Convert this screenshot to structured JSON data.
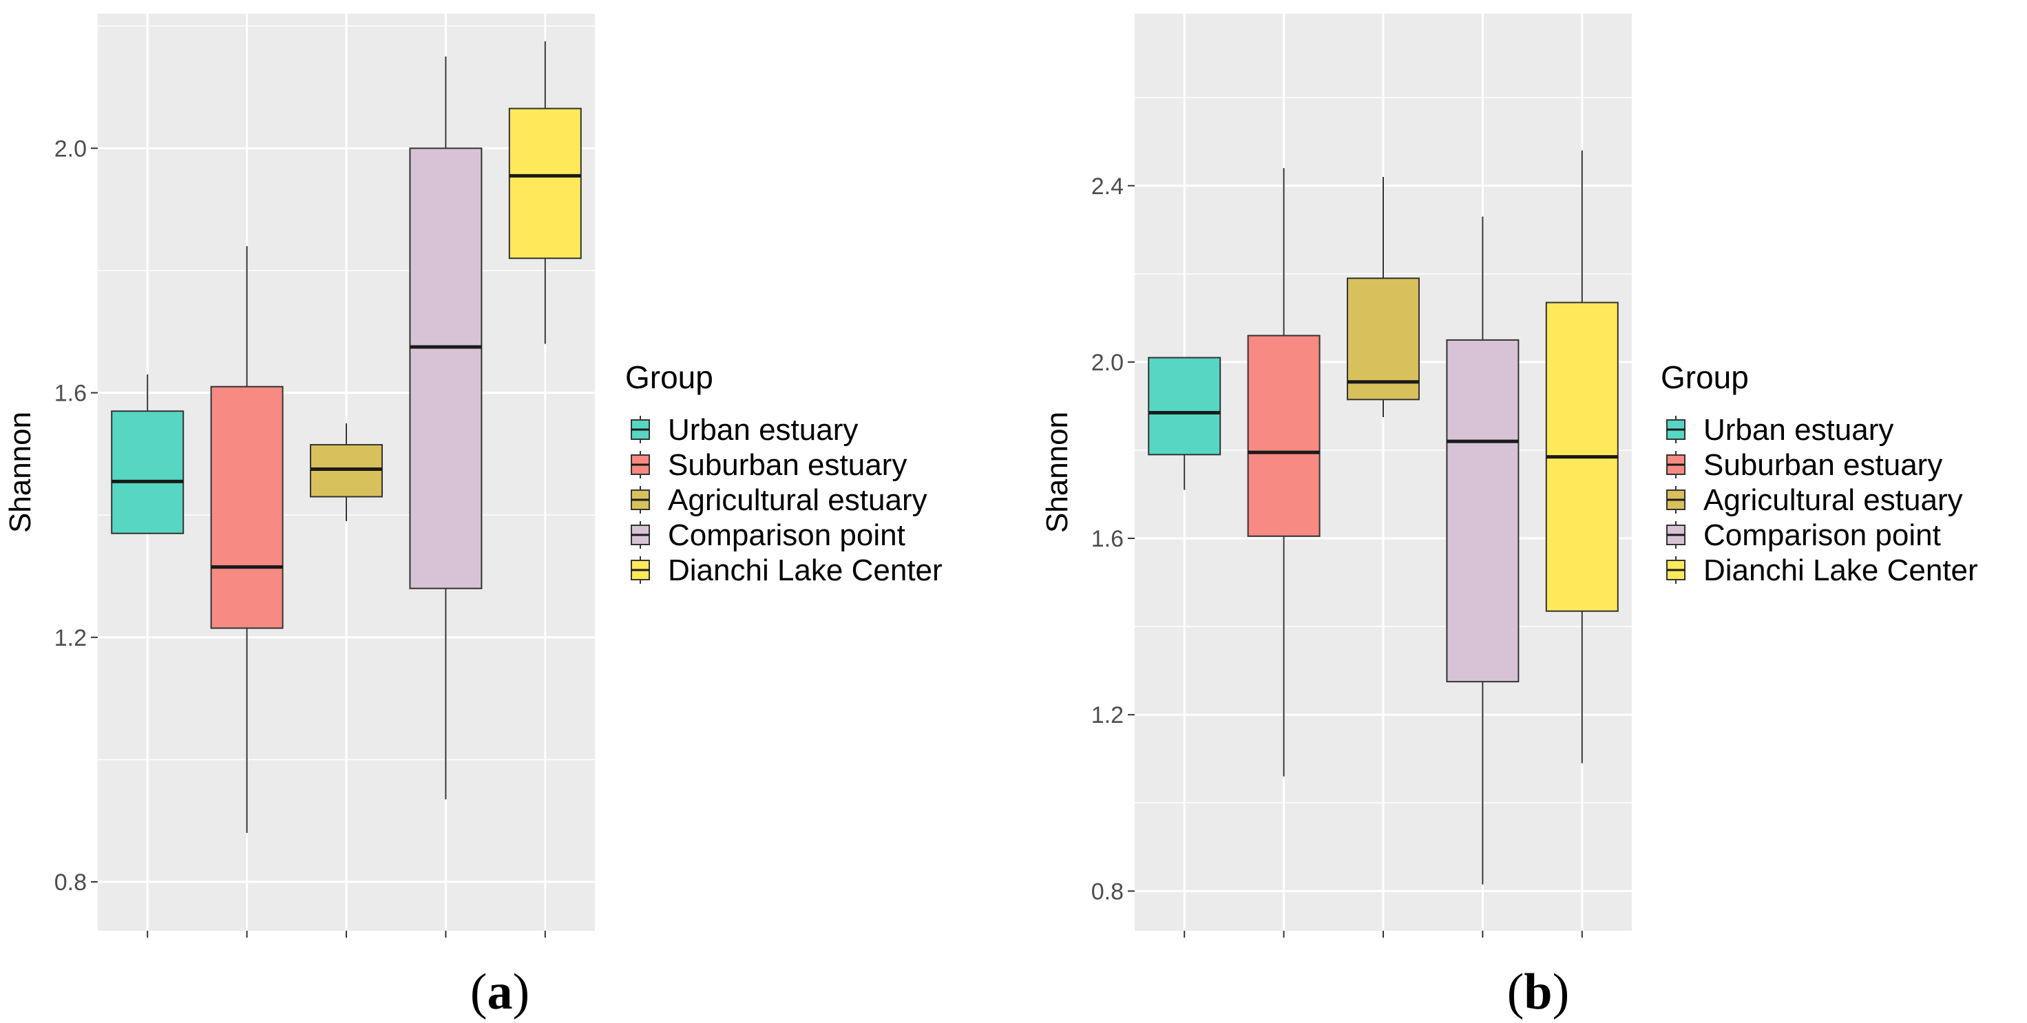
{
  "chart_data": [
    {
      "type": "boxplot",
      "panel_label_prefix": "(",
      "panel_letter": "a",
      "panel_label_suffix": ")",
      "ylabel": "Shannon",
      "xlabel": "",
      "ylim": [
        0.72,
        2.22
      ],
      "yticks": [
        0.8,
        1.2,
        1.6,
        2.0
      ],
      "ytick_labels": [
        "0.8",
        "1.2",
        "1.6",
        "2.0"
      ],
      "legend": {
        "title": "Group",
        "position": "right"
      },
      "groups": [
        {
          "name": "Urban estuary",
          "color": "#56d6c3",
          "whisker_low": 1.37,
          "q1": 1.37,
          "median": 1.455,
          "q3": 1.57,
          "whisker_high": 1.63
        },
        {
          "name": "Suburban estuary",
          "color": "#f78a82",
          "whisker_low": 0.88,
          "q1": 1.215,
          "median": 1.315,
          "q3": 1.61,
          "whisker_high": 1.84
        },
        {
          "name": "Agricultural estuary",
          "color": "#d8c15c",
          "whisker_low": 1.39,
          "q1": 1.43,
          "median": 1.475,
          "q3": 1.515,
          "whisker_high": 1.55
        },
        {
          "name": "Comparison point",
          "color": "#d8c3d6",
          "whisker_low": 0.935,
          "q1": 1.28,
          "median": 1.675,
          "q3": 2.0,
          "whisker_high": 2.15
        },
        {
          "name": "Dianchi Lake Center",
          "color": "#fde95a",
          "whisker_low": 1.68,
          "q1": 1.82,
          "median": 1.955,
          "q3": 2.065,
          "whisker_high": 2.175
        }
      ]
    },
    {
      "type": "boxplot",
      "panel_label_prefix": "(",
      "panel_letter": "b",
      "panel_label_suffix": ")",
      "ylabel": "Shannon",
      "xlabel": "",
      "ylim": [
        0.71,
        2.79
      ],
      "yticks": [
        0.8,
        1.2,
        1.6,
        2.0,
        2.4
      ],
      "ytick_labels": [
        "0.8",
        "1.2",
        "1.6",
        "2.0",
        "2.4"
      ],
      "legend": {
        "title": "Group",
        "position": "right"
      },
      "groups": [
        {
          "name": "Urban estuary",
          "color": "#56d6c3",
          "whisker_low": 1.71,
          "q1": 1.79,
          "median": 1.885,
          "q3": 2.01,
          "whisker_high": 2.01
        },
        {
          "name": "Suburban estuary",
          "color": "#f78a82",
          "whisker_low": 1.06,
          "q1": 1.605,
          "median": 1.795,
          "q3": 2.06,
          "whisker_high": 2.44
        },
        {
          "name": "Agricultural estuary",
          "color": "#d8c15c",
          "whisker_low": 1.875,
          "q1": 1.915,
          "median": 1.955,
          "q3": 2.19,
          "whisker_high": 2.42
        },
        {
          "name": "Comparison point",
          "color": "#d8c3d6",
          "whisker_low": 0.815,
          "q1": 1.275,
          "median": 1.82,
          "q3": 2.05,
          "whisker_high": 2.33
        },
        {
          "name": "Dianchi Lake Center",
          "color": "#fde95a",
          "whisker_low": 1.09,
          "q1": 1.435,
          "median": 1.785,
          "q3": 2.135,
          "whisker_high": 2.48
        }
      ]
    }
  ]
}
